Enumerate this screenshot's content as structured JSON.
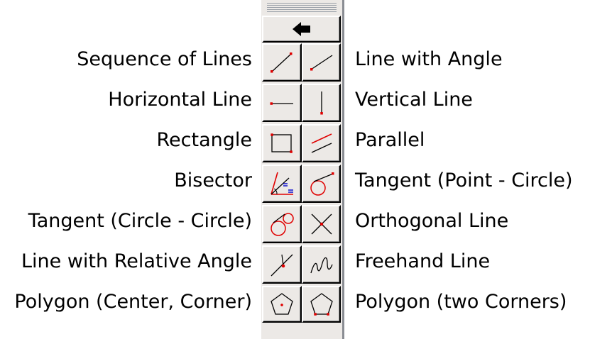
{
  "toolbar": {
    "back_button": {
      "icon": "back-arrow-icon"
    },
    "rows": [
      {
        "left": {
          "label": "Sequence of Lines",
          "icon": "sequence-of-lines-icon"
        },
        "right": {
          "label": "Line with Angle",
          "icon": "line-with-angle-icon"
        }
      },
      {
        "left": {
          "label": "Horizontal Line",
          "icon": "horizontal-line-icon"
        },
        "right": {
          "label": "Vertical Line",
          "icon": "vertical-line-icon"
        }
      },
      {
        "left": {
          "label": "Rectangle",
          "icon": "rectangle-icon"
        },
        "right": {
          "label": "Parallel",
          "icon": "parallel-icon"
        }
      },
      {
        "left": {
          "label": "Bisector",
          "icon": "bisector-icon"
        },
        "right": {
          "label": "Tangent (Point - Circle)",
          "icon": "tangent-point-circle-icon"
        }
      },
      {
        "left": {
          "label": "Tangent (Circle - Circle)",
          "icon": "tangent-circle-circle-icon"
        },
        "right": {
          "label": "Orthogonal Line",
          "icon": "orthogonal-line-icon"
        }
      },
      {
        "left": {
          "label": "Line with Relative Angle",
          "icon": "line-relative-angle-icon"
        },
        "right": {
          "label": "Freehand Line",
          "icon": "freehand-line-icon"
        }
      },
      {
        "left": {
          "label": "Polygon (Center, Corner)",
          "icon": "polygon-center-corner-icon"
        },
        "right": {
          "label": "Polygon (two Corners)",
          "icon": "polygon-two-corners-icon"
        }
      }
    ]
  },
  "colors": {
    "accent": "#e00000",
    "ink": "#000000",
    "toolbar_bg": "#ece9e6",
    "bisector_blue": "#0000cc"
  }
}
